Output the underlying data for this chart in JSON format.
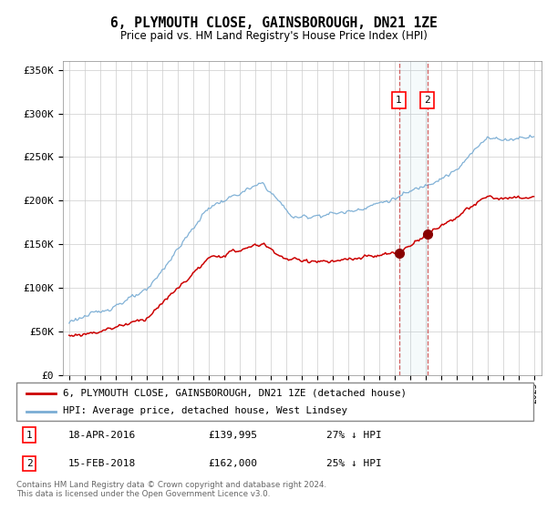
{
  "title": "6, PLYMOUTH CLOSE, GAINSBOROUGH, DN21 1ZE",
  "subtitle": "Price paid vs. HM Land Registry's House Price Index (HPI)",
  "legend_line1": "6, PLYMOUTH CLOSE, GAINSBOROUGH, DN21 1ZE (detached house)",
  "legend_line2": "HPI: Average price, detached house, West Lindsey",
  "transaction1_date": "18-APR-2016",
  "transaction1_price": "£139,995",
  "transaction1_hpi": "27% ↓ HPI",
  "transaction2_date": "15-FEB-2018",
  "transaction2_price": "£162,000",
  "transaction2_hpi": "25% ↓ HPI",
  "footnote": "Contains HM Land Registry data © Crown copyright and database right 2024.\nThis data is licensed under the Open Government Licence v3.0.",
  "hpi_color": "#7aadd4",
  "price_color": "#cc0000",
  "marker1_x": 2016.29,
  "marker2_x": 2018.12,
  "marker1_y": 139995,
  "marker2_y": 162000,
  "ylim": [
    0,
    360000
  ],
  "xlim_start": 1994.6,
  "xlim_end": 2025.5
}
